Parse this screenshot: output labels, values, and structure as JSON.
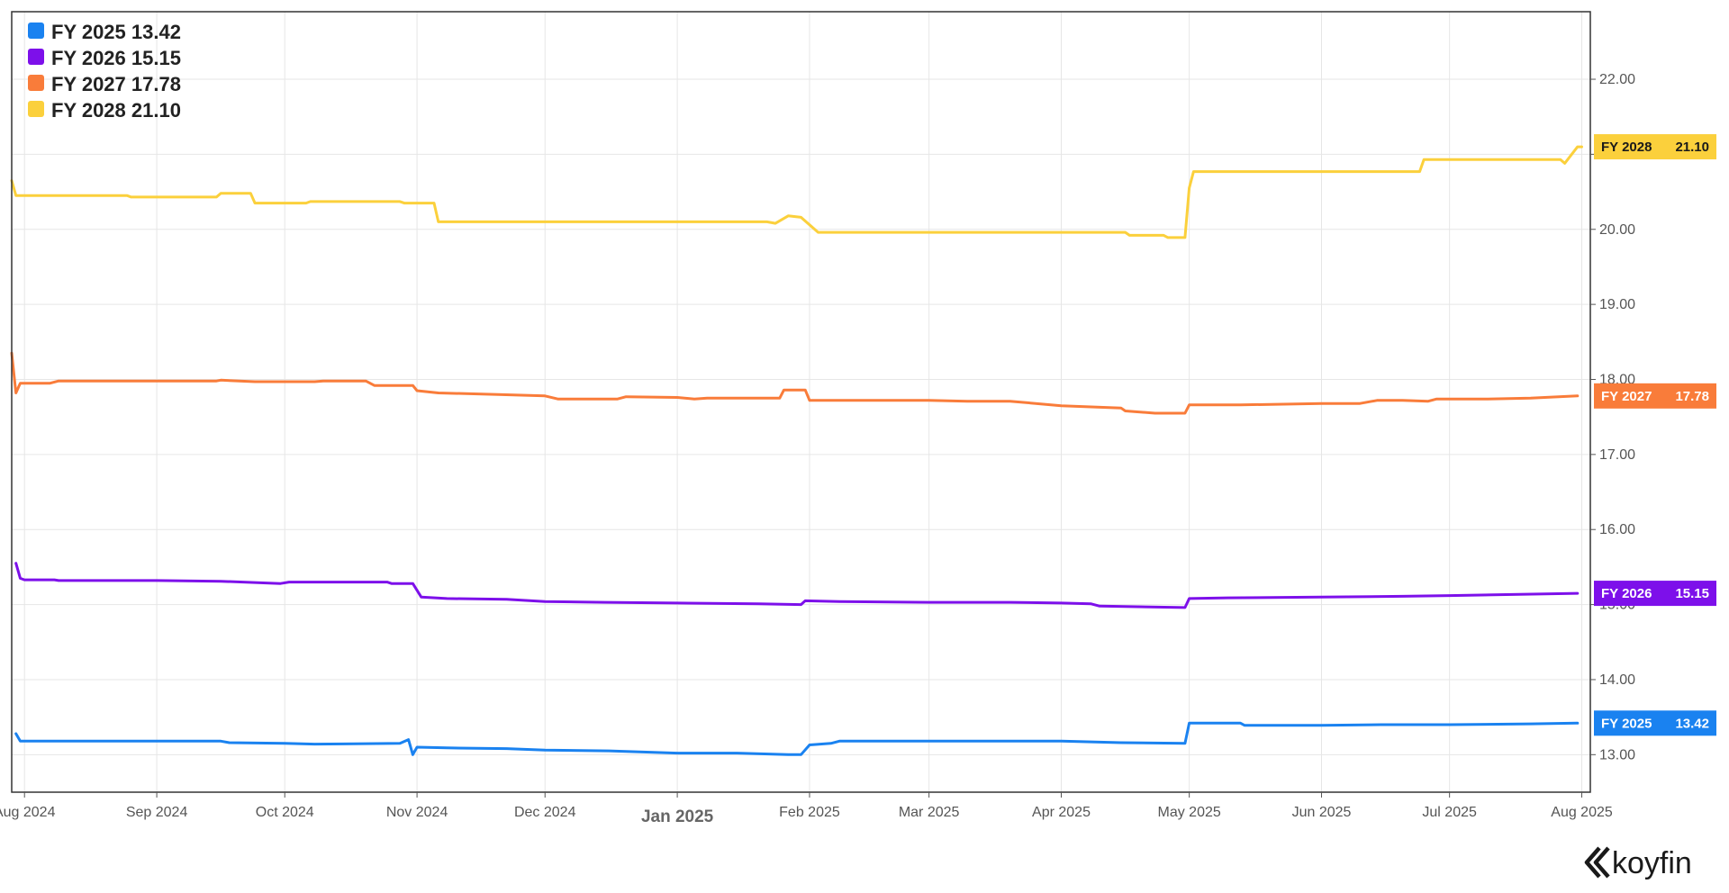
{
  "chart_data": {
    "type": "line",
    "ylim": [
      12.5,
      22.9
    ],
    "yticks": [
      "13.00",
      "14.00",
      "15.00",
      "16.00",
      "17.00",
      "18.00",
      "19.00",
      "20.00",
      "21.00",
      "22.00"
    ],
    "x_range": [
      "2024-07-29",
      "2025-08-03"
    ],
    "xticks": [
      {
        "date": "2024-08-01",
        "label": "Aug 2024",
        "major": false
      },
      {
        "date": "2024-09-01",
        "label": "Sep 2024",
        "major": false
      },
      {
        "date": "2024-10-01",
        "label": "Oct 2024",
        "major": false
      },
      {
        "date": "2024-11-01",
        "label": "Nov 2024",
        "major": false
      },
      {
        "date": "2024-12-01",
        "label": "Dec 2024",
        "major": false
      },
      {
        "date": "2025-01-01",
        "label": "Jan 2025",
        "major": true
      },
      {
        "date": "2025-02-01",
        "label": "Feb 2025",
        "major": false
      },
      {
        "date": "2025-03-01",
        "label": "Mar 2025",
        "major": false
      },
      {
        "date": "2025-04-01",
        "label": "Apr 2025",
        "major": false
      },
      {
        "date": "2025-05-01",
        "label": "May 2025",
        "major": false
      },
      {
        "date": "2025-06-01",
        "label": "Jun 2025",
        "major": false
      },
      {
        "date": "2025-07-01",
        "label": "Jul 2025",
        "major": false
      },
      {
        "date": "2025-08-01",
        "label": "Aug 2025",
        "major": false
      }
    ],
    "grid": true,
    "legend_position": "top-left",
    "series": [
      {
        "name": "FY 2025",
        "last": "13.42",
        "color": "#1a82f0",
        "points": [
          [
            "2024-07-30",
            13.28
          ],
          [
            "2024-07-31",
            13.18
          ],
          [
            "2024-08-01",
            13.18
          ],
          [
            "2024-09-01",
            13.18
          ],
          [
            "2024-09-16",
            13.18
          ],
          [
            "2024-09-18",
            13.16
          ],
          [
            "2024-10-01",
            13.15
          ],
          [
            "2024-10-08",
            13.14
          ],
          [
            "2024-10-28",
            13.15
          ],
          [
            "2024-10-30",
            13.2
          ],
          [
            "2024-10-31",
            13.0
          ],
          [
            "2024-11-01",
            13.1
          ],
          [
            "2024-11-08",
            13.09
          ],
          [
            "2024-11-22",
            13.08
          ],
          [
            "2024-12-01",
            13.06
          ],
          [
            "2024-12-16",
            13.05
          ],
          [
            "2025-01-01",
            13.02
          ],
          [
            "2025-01-15",
            13.02
          ],
          [
            "2025-01-27",
            13.0
          ],
          [
            "2025-01-30",
            13.0
          ],
          [
            "2025-02-01",
            13.13
          ],
          [
            "2025-02-06",
            13.15
          ],
          [
            "2025-02-08",
            13.18
          ],
          [
            "2025-03-01",
            13.18
          ],
          [
            "2025-03-15",
            13.18
          ],
          [
            "2025-04-01",
            13.18
          ],
          [
            "2025-04-15",
            13.16
          ],
          [
            "2025-04-30",
            13.15
          ],
          [
            "2025-05-01",
            13.42
          ],
          [
            "2025-05-13",
            13.42
          ],
          [
            "2025-05-14",
            13.39
          ],
          [
            "2025-06-01",
            13.39
          ],
          [
            "2025-06-15",
            13.4
          ],
          [
            "2025-07-01",
            13.4
          ],
          [
            "2025-07-20",
            13.41
          ],
          [
            "2025-07-31",
            13.42
          ]
        ]
      },
      {
        "name": "FY 2026",
        "last": "15.15",
        "color": "#7d10ea",
        "points": [
          [
            "2024-07-30",
            15.55
          ],
          [
            "2024-07-31",
            15.35
          ],
          [
            "2024-08-01",
            15.33
          ],
          [
            "2024-08-08",
            15.33
          ],
          [
            "2024-08-09",
            15.32
          ],
          [
            "2024-09-01",
            15.32
          ],
          [
            "2024-09-16",
            15.31
          ],
          [
            "2024-09-30",
            15.28
          ],
          [
            "2024-10-02",
            15.3
          ],
          [
            "2024-10-25",
            15.3
          ],
          [
            "2024-10-26",
            15.28
          ],
          [
            "2024-10-31",
            15.28
          ],
          [
            "2024-11-02",
            15.1
          ],
          [
            "2024-11-08",
            15.08
          ],
          [
            "2024-11-22",
            15.07
          ],
          [
            "2024-12-01",
            15.04
          ],
          [
            "2024-12-15",
            15.03
          ],
          [
            "2025-01-01",
            15.02
          ],
          [
            "2025-01-20",
            15.01
          ],
          [
            "2025-01-30",
            15.0
          ],
          [
            "2025-01-31",
            15.05
          ],
          [
            "2025-02-08",
            15.04
          ],
          [
            "2025-03-01",
            15.03
          ],
          [
            "2025-03-20",
            15.03
          ],
          [
            "2025-04-01",
            15.02
          ],
          [
            "2025-04-08",
            15.01
          ],
          [
            "2025-04-10",
            14.98
          ],
          [
            "2025-04-30",
            14.96
          ],
          [
            "2025-05-01",
            15.08
          ],
          [
            "2025-05-10",
            15.09
          ],
          [
            "2025-06-01",
            15.1
          ],
          [
            "2025-06-20",
            15.11
          ],
          [
            "2025-07-01",
            15.12
          ],
          [
            "2025-07-31",
            15.15
          ]
        ]
      },
      {
        "name": "FY 2027",
        "last": "17.78",
        "color": "#f97c3a",
        "points": [
          [
            "2024-07-29",
            18.35
          ],
          [
            "2024-07-30",
            17.82
          ],
          [
            "2024-07-31",
            17.95
          ],
          [
            "2024-08-07",
            17.95
          ],
          [
            "2024-08-09",
            17.98
          ],
          [
            "2024-09-01",
            17.98
          ],
          [
            "2024-09-15",
            17.98
          ],
          [
            "2024-09-16",
            17.99
          ],
          [
            "2024-09-24",
            17.97
          ],
          [
            "2024-10-01",
            17.97
          ],
          [
            "2024-10-08",
            17.97
          ],
          [
            "2024-10-10",
            17.98
          ],
          [
            "2024-10-20",
            17.98
          ],
          [
            "2024-10-22",
            17.92
          ],
          [
            "2024-10-31",
            17.92
          ],
          [
            "2024-11-01",
            17.85
          ],
          [
            "2024-11-06",
            17.82
          ],
          [
            "2024-11-20",
            17.8
          ],
          [
            "2024-12-01",
            17.78
          ],
          [
            "2024-12-04",
            17.74
          ],
          [
            "2024-12-18",
            17.74
          ],
          [
            "2024-12-20",
            17.77
          ],
          [
            "2025-01-01",
            17.76
          ],
          [
            "2025-01-05",
            17.74
          ],
          [
            "2025-01-08",
            17.75
          ],
          [
            "2025-01-25",
            17.75
          ],
          [
            "2025-01-26",
            17.86
          ],
          [
            "2025-01-31",
            17.86
          ],
          [
            "2025-02-01",
            17.72
          ],
          [
            "2025-02-08",
            17.72
          ],
          [
            "2025-03-01",
            17.72
          ],
          [
            "2025-03-10",
            17.71
          ],
          [
            "2025-03-20",
            17.71
          ],
          [
            "2025-04-01",
            17.65
          ],
          [
            "2025-04-15",
            17.62
          ],
          [
            "2025-04-16",
            17.58
          ],
          [
            "2025-04-23",
            17.55
          ],
          [
            "2025-04-30",
            17.55
          ],
          [
            "2025-05-01",
            17.66
          ],
          [
            "2025-05-13",
            17.66
          ],
          [
            "2025-06-01",
            17.68
          ],
          [
            "2025-06-10",
            17.68
          ],
          [
            "2025-06-14",
            17.72
          ],
          [
            "2025-06-20",
            17.72
          ],
          [
            "2025-06-26",
            17.71
          ],
          [
            "2025-06-28",
            17.74
          ],
          [
            "2025-07-10",
            17.74
          ],
          [
            "2025-07-20",
            17.75
          ],
          [
            "2025-07-31",
            17.78
          ]
        ]
      },
      {
        "name": "FY 2028",
        "last": "21.10",
        "color": "#fbd03c",
        "points": [
          [
            "2024-07-29",
            20.65
          ],
          [
            "2024-07-30",
            20.45
          ],
          [
            "2024-08-01",
            20.45
          ],
          [
            "2024-08-25",
            20.45
          ],
          [
            "2024-08-26",
            20.43
          ],
          [
            "2024-09-15",
            20.43
          ],
          [
            "2024-09-16",
            20.48
          ],
          [
            "2024-09-23",
            20.48
          ],
          [
            "2024-09-24",
            20.35
          ],
          [
            "2024-10-06",
            20.35
          ],
          [
            "2024-10-07",
            20.37
          ],
          [
            "2024-10-28",
            20.37
          ],
          [
            "2024-10-29",
            20.35
          ],
          [
            "2024-11-05",
            20.35
          ],
          [
            "2024-11-06",
            20.1
          ],
          [
            "2024-11-20",
            20.1
          ],
          [
            "2025-01-01",
            20.1
          ],
          [
            "2025-01-22",
            20.1
          ],
          [
            "2025-01-24",
            20.08
          ],
          [
            "2025-01-27",
            20.18
          ],
          [
            "2025-01-30",
            20.16
          ],
          [
            "2025-02-03",
            19.96
          ],
          [
            "2025-02-10",
            19.96
          ],
          [
            "2025-03-01",
            19.96
          ],
          [
            "2025-04-01",
            19.96
          ],
          [
            "2025-04-16",
            19.96
          ],
          [
            "2025-04-17",
            19.92
          ],
          [
            "2025-04-25",
            19.92
          ],
          [
            "2025-04-26",
            19.89
          ],
          [
            "2025-04-30",
            19.89
          ],
          [
            "2025-05-01",
            20.55
          ],
          [
            "2025-05-02",
            20.77
          ],
          [
            "2025-06-01",
            20.77
          ],
          [
            "2025-06-24",
            20.77
          ],
          [
            "2025-06-25",
            20.93
          ],
          [
            "2025-07-01",
            20.93
          ],
          [
            "2025-07-27",
            20.93
          ],
          [
            "2025-07-28",
            20.88
          ],
          [
            "2025-07-31",
            21.1
          ],
          [
            "2025-08-01",
            21.1
          ]
        ]
      }
    ]
  },
  "brand": {
    "logo_text": "koyfin"
  }
}
